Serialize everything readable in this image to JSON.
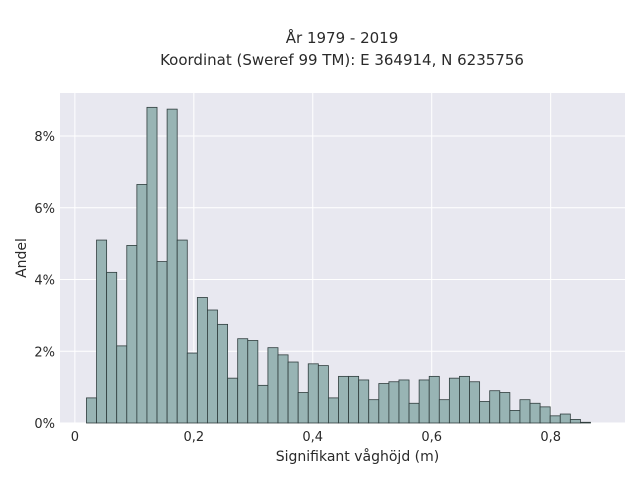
{
  "chart_data": {
    "type": "bar",
    "title": "År 1979 - 2019",
    "subtitle": "Koordinat (Sweref 99 TM): E 364914, N 6235756",
    "xlabel": "Signifikant våghöjd (m)",
    "ylabel": "Andel",
    "xlim": [
      -0.025,
      0.925
    ],
    "ylim": [
      0,
      9.2
    ],
    "x_ticks": [
      0,
      0.2,
      0.4,
      0.6,
      0.8
    ],
    "x_tick_labels": [
      "0",
      "0,2",
      "0,4",
      "0,6",
      "0,8"
    ],
    "y_ticks": [
      0,
      2,
      4,
      6,
      8
    ],
    "y_tick_labels": [
      "0%",
      "2%",
      "4%",
      "6%",
      "8%"
    ],
    "bin_width": 0.01695,
    "bin_start": 0.0195,
    "values": [
      0.7,
      5.1,
      4.2,
      2.15,
      4.95,
      6.65,
      8.8,
      4.5,
      8.75,
      5.1,
      1.95,
      3.5,
      3.15,
      2.75,
      1.25,
      2.35,
      2.3,
      1.05,
      2.1,
      1.9,
      1.7,
      0.85,
      1.65,
      1.6,
      0.7,
      1.3,
      1.3,
      1.2,
      0.65,
      1.1,
      1.15,
      1.2,
      0.55,
      1.2,
      1.3,
      0.65,
      1.25,
      1.3,
      1.15,
      0.6,
      0.9,
      0.85,
      0.35,
      0.65,
      0.55,
      0.45,
      0.2,
      0.25,
      0.1,
      0.02
    ],
    "grid": true,
    "bar_color": "#98b4b4",
    "bar_edge_color": "#2f3d3d",
    "background_color": "#e8e8f0"
  }
}
